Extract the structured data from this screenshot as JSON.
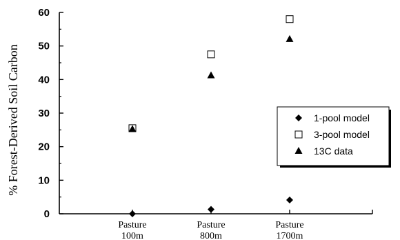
{
  "chart_data": {
    "type": "scatter",
    "title": "",
    "xlabel": "",
    "ylabel": "% Forest-Derived Soil Carbon",
    "categories": [
      [
        "Pasture",
        "100m"
      ],
      [
        "Pasture",
        "800m"
      ],
      [
        "Pasture",
        "1700m"
      ]
    ],
    "ylim": [
      0,
      60
    ],
    "yticks": [
      0,
      10,
      20,
      30,
      40,
      50,
      60
    ],
    "grid": false,
    "legend_position": "right",
    "series": [
      {
        "name": "1-pool model",
        "marker": "diamond-filled",
        "values": [
          0,
          1.3,
          4.1
        ]
      },
      {
        "name": "3-pool model",
        "marker": "square-open",
        "values": [
          25.5,
          47.5,
          58
        ]
      },
      {
        "name": "13C data",
        "marker": "triangle-filled",
        "values": [
          25.2,
          41.2,
          52
        ]
      }
    ]
  }
}
